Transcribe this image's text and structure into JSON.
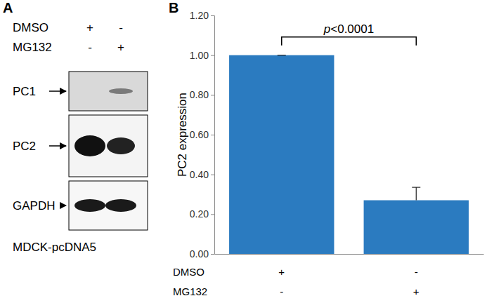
{
  "chart_data": {
    "type": "bar",
    "panel": "B",
    "categories": [
      null,
      null
    ],
    "treatments": [
      {
        "label": "DMSO",
        "marks": [
          "+",
          "-"
        ]
      },
      {
        "label": "MG132",
        "marks": [
          "-",
          "+"
        ]
      }
    ],
    "values": [
      1.0,
      0.27
    ],
    "errors": [
      0,
      0.065
    ],
    "color": "#2b7bc0",
    "y_label": "PC2 expression",
    "ylim": [
      0,
      1.2
    ],
    "yticks": [
      {
        "value": 0,
        "label": "0.00"
      },
      {
        "value": 0.2,
        "label": "0.20"
      },
      {
        "value": 0.4,
        "label": "0.40"
      },
      {
        "value": 0.6,
        "label": "0.60"
      },
      {
        "value": 0.8,
        "label": "0.80"
      },
      {
        "value": 1.0,
        "label": "1.00"
      },
      {
        "value": 1.2,
        "label": "1.20"
      }
    ],
    "annotation": "p<0.0001"
  },
  "blot": {
    "panel": "A",
    "treatments": [
      {
        "label": "DMSO",
        "marks": [
          "+",
          "-"
        ]
      },
      {
        "label": "MG132",
        "marks": [
          "-",
          "+"
        ]
      }
    ],
    "proteins": [
      "PC1",
      "PC2",
      "GAPDH"
    ],
    "cell_line": "MDCK-pcDNA5"
  }
}
